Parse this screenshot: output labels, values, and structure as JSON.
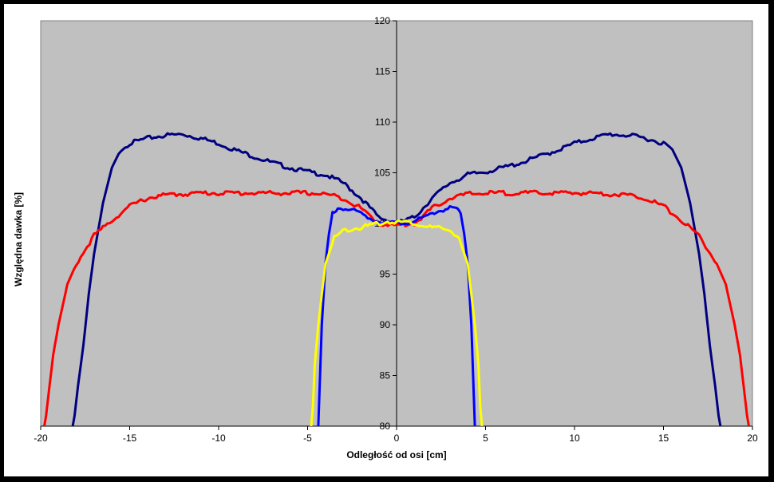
{
  "chart_data": {
    "type": "line",
    "title": "",
    "xlabel": "Odległość od osi [cm]",
    "ylabel": "Względna dawka [%]",
    "xlim": [
      -20,
      20
    ],
    "ylim": [
      80,
      120
    ],
    "xticks": [
      -20,
      -15,
      -10,
      -5,
      0,
      5,
      10,
      15,
      20
    ],
    "yticks": [
      80,
      85,
      90,
      95,
      100,
      105,
      110,
      115,
      120
    ],
    "grid": false,
    "plot_background": "#c0c0c0",
    "series": [
      {
        "color": "#000080",
        "x": [
          0,
          1,
          2,
          3,
          4,
          5,
          6,
          7,
          8,
          9,
          10,
          11,
          12,
          13,
          14,
          15,
          15.5,
          16,
          16.5,
          17,
          17.3,
          17.6,
          17.9,
          18.1,
          18.2,
          18.3
        ],
        "y": [
          100.0,
          100.6,
          102.5,
          104.0,
          104.8,
          105.1,
          105.5,
          106.0,
          106.6,
          107.2,
          107.9,
          108.4,
          108.8,
          108.7,
          108.4,
          107.9,
          107.3,
          105.5,
          102.0,
          97.0,
          93.0,
          88.0,
          84.0,
          81.0,
          80.0,
          79.0
        ],
        "symmetric": true
      },
      {
        "color": "#ff0000",
        "x": [
          0,
          1,
          2,
          3,
          4,
          5,
          6,
          7,
          8,
          9,
          10,
          11,
          12,
          13,
          14,
          15,
          16,
          17,
          18,
          18.5,
          19,
          19.3,
          19.5,
          19.7,
          19.8
        ],
        "y": [
          99.8,
          100.0,
          101.5,
          102.5,
          102.9,
          103.0,
          103.0,
          103.0,
          103.0,
          103.0,
          103.0,
          103.0,
          102.9,
          102.8,
          102.5,
          101.7,
          100.3,
          98.8,
          96.0,
          94.0,
          90.0,
          87.0,
          84.0,
          81.0,
          80.0
        ],
        "symmetric": true
      },
      {
        "color": "#0000ff",
        "x": [
          0,
          0.5,
          1,
          1.5,
          2,
          2.5,
          3,
          3.3,
          3.6,
          3.8,
          4.0,
          4.2,
          4.3,
          4.4
        ],
        "y": [
          100.0,
          100.1,
          100.2,
          100.5,
          101.0,
          101.3,
          101.5,
          101.5,
          101.0,
          99.0,
          96.0,
          90.0,
          85.0,
          80.0
        ],
        "symmetric": true
      },
      {
        "color": "#ffff00",
        "x": [
          0,
          0.5,
          1,
          1.5,
          2,
          2.5,
          3,
          3.5,
          4.0,
          4.2,
          4.4,
          4.5,
          4.6,
          4.7,
          4.8
        ],
        "y": [
          100.1,
          100.2,
          100.0,
          99.8,
          99.6,
          99.5,
          99.3,
          98.6,
          96.0,
          93.0,
          90.0,
          88.0,
          86.0,
          82.0,
          80.0
        ],
        "symmetric": true
      }
    ]
  }
}
